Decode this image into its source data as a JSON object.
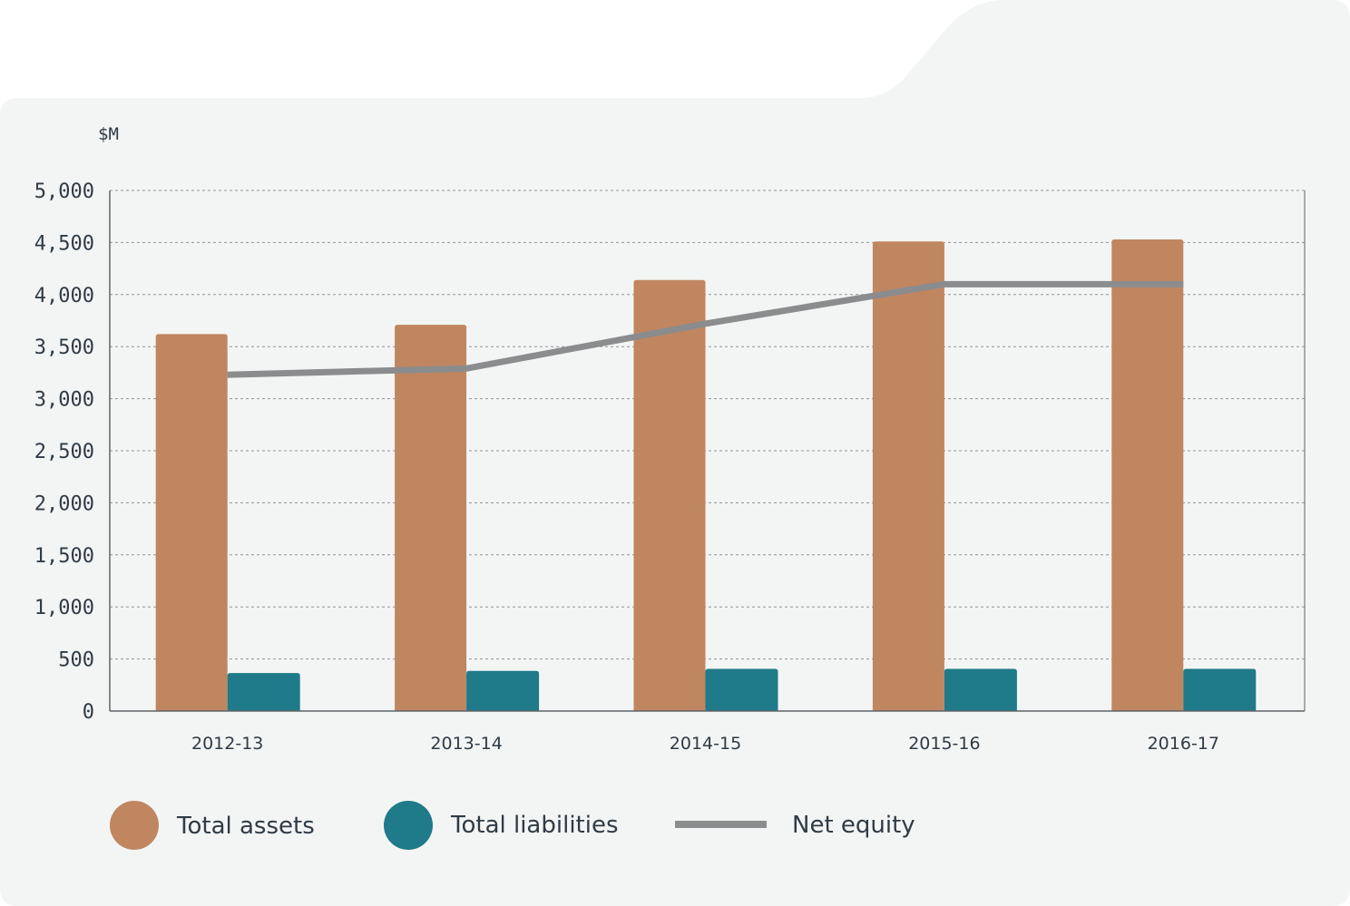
{
  "chart_data": {
    "type": "bar",
    "unit_label": "$M",
    "categories": [
      "2012-13",
      "2013-14",
      "2014-15",
      "2015-16",
      "2016-17"
    ],
    "ylim": [
      0,
      5000
    ],
    "yticks": [
      0,
      500,
      1000,
      1500,
      2000,
      2500,
      3000,
      3500,
      4000,
      4500,
      5000
    ],
    "ytick_labels": [
      "0",
      "500",
      "1,000",
      "1,500",
      "2,000",
      "2,500",
      "3,000",
      "3,500",
      "4,000",
      "4,500",
      "5,000"
    ],
    "grid": true,
    "legend_position": "bottom",
    "series": [
      {
        "name": "Total assets",
        "kind": "bar",
        "color": "#c08660",
        "values": [
          3620,
          3710,
          4140,
          4510,
          4530
        ]
      },
      {
        "name": "Total liabilities",
        "kind": "bar",
        "color": "#1f7a89",
        "values": [
          365,
          385,
          405,
          405,
          405
        ]
      },
      {
        "name": "Net equity",
        "kind": "line",
        "color": "#8a8c8e",
        "values": [
          3230,
          3290,
          3720,
          4100,
          4100
        ]
      }
    ]
  },
  "colors": {
    "background_panel": "#f3f5f4",
    "gridline": "#8f9497",
    "axis": "#5f6468",
    "text": "#2f3b45"
  }
}
